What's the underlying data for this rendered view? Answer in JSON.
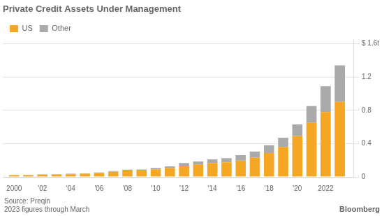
{
  "chart_data": {
    "type": "bar",
    "title": "Private Credit Assets Under Management",
    "x": [
      2000,
      2001,
      2002,
      2003,
      2004,
      2005,
      2006,
      2007,
      2008,
      2009,
      2010,
      2011,
      2012,
      2013,
      2014,
      2015,
      2016,
      2017,
      2018,
      2019,
      2020,
      2021,
      2022,
      2023
    ],
    "series": [
      {
        "name": "US",
        "color": "#F5A623",
        "values": [
          0.02,
          0.022,
          0.025,
          0.028,
          0.032,
          0.037,
          0.045,
          0.06,
          0.075,
          0.075,
          0.09,
          0.105,
          0.135,
          0.15,
          0.165,
          0.175,
          0.195,
          0.23,
          0.285,
          0.36,
          0.49,
          0.65,
          0.78,
          0.9
        ]
      },
      {
        "name": "Other",
        "color": "#AAAAAA",
        "values": [
          0.003,
          0.003,
          0.004,
          0.004,
          0.005,
          0.006,
          0.008,
          0.01,
          0.012,
          0.013,
          0.018,
          0.022,
          0.03,
          0.035,
          0.045,
          0.05,
          0.065,
          0.075,
          0.095,
          0.11,
          0.14,
          0.2,
          0.31,
          0.44
        ]
      }
    ],
    "stacked": true,
    "xlim": [
      1999.2,
      2024.0
    ],
    "xticks": [
      2000,
      {
        "value": 2002,
        "label": "'02"
      },
      {
        "value": 2004,
        "label": "'04"
      },
      {
        "value": 2006,
        "label": "'06"
      },
      {
        "value": 2008,
        "label": "'08"
      },
      {
        "value": 2010,
        "label": "'10"
      },
      {
        "value": 2012,
        "label": "'12"
      },
      {
        "value": 2014,
        "label": "'14"
      },
      {
        "value": 2016,
        "label": "'16"
      },
      {
        "value": 2018,
        "label": "'18"
      },
      {
        "value": 2020,
        "label": "'20"
      },
      2022
    ],
    "ylim": [
      0,
      1.65
    ],
    "yticks": [
      0,
      0.4,
      0.8,
      1.2,
      {
        "value": 1.6,
        "label": "$ 1.6t"
      }
    ],
    "grid": true,
    "legend": "top-left",
    "annotations": [
      "Source: Preqin\n2023 figures through March",
      "Bloomberg"
    ]
  }
}
